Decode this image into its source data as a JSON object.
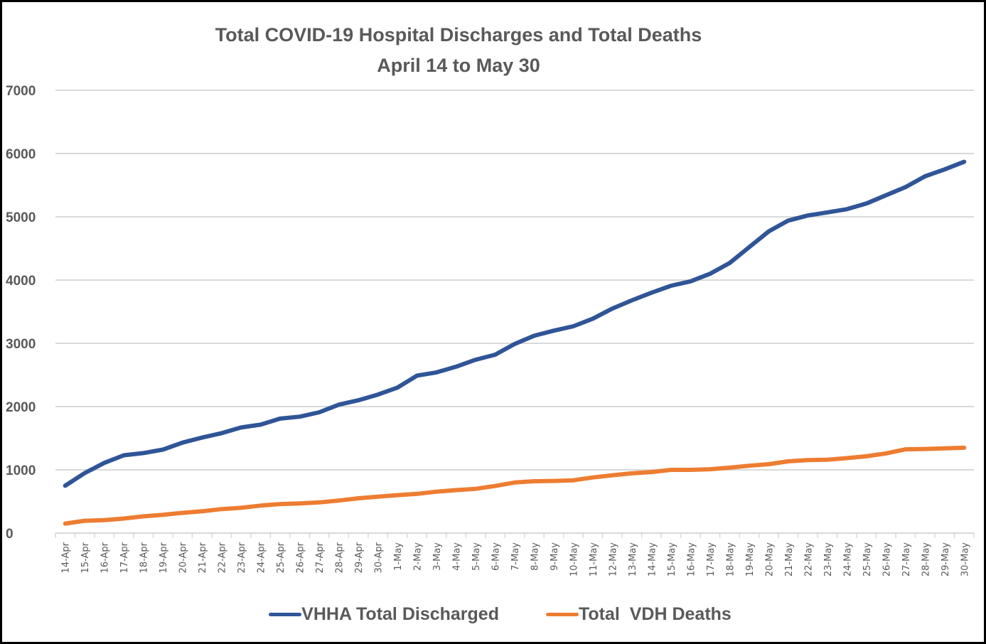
{
  "chart_data": {
    "type": "line",
    "title": "Total COVID-19 Hospital Discharges and Total Deaths",
    "subtitle": "April 14 to May 30",
    "xlabel": "",
    "ylabel": "",
    "ylim": [
      0,
      7000
    ],
    "yticks": [
      "0",
      "1000",
      "2000",
      "3000",
      "4000",
      "5000",
      "6000",
      "7000"
    ],
    "grid": true,
    "legend_position": "bottom",
    "categories": [
      "14-Apr",
      "15-Apr",
      "16-Apr",
      "17-Apr",
      "18-Apr",
      "19-Apr",
      "20-Apr",
      "21-Apr",
      "22-Apr",
      "23-Apr",
      "24-Apr",
      "25-Apr",
      "26-Apr",
      "27-Apr",
      "28-Apr",
      "29-Apr",
      "30-Apr",
      "1-May",
      "2-May",
      "3-May",
      "4-May",
      "5-May",
      "6-May",
      "7-May",
      "8-May",
      "9-May",
      "10-May",
      "11-May",
      "12-May",
      "13-May",
      "14-May",
      "15-May",
      "16-May",
      "17-May",
      "18-May",
      "19-May",
      "20-May",
      "21-May",
      "22-May",
      "23-May",
      "24-May",
      "25-May",
      "26-May",
      "27-May",
      "28-May",
      "29-May",
      "30-May"
    ],
    "series": [
      {
        "name": "VHHA Total Discharged",
        "color": "#2F5597",
        "values": [
          750,
          950,
          1110,
          1230,
          1265,
          1320,
          1430,
          1510,
          1580,
          1670,
          1715,
          1810,
          1840,
          1910,
          2030,
          2100,
          2190,
          2300,
          2490,
          2540,
          2630,
          2740,
          2820,
          2990,
          3120,
          3200,
          3270,
          3390,
          3550,
          3680,
          3800,
          3910,
          3980,
          4100,
          4270,
          4520,
          4770,
          4940,
          5020,
          5070,
          5120,
          5210,
          5340,
          5470,
          5640,
          5750,
          5870
        ]
      },
      {
        "name": "Total  VDH Deaths",
        "color": "#ED7D31",
        "values": [
          150,
          195,
          205,
          230,
          265,
          290,
          320,
          345,
          380,
          400,
          435,
          460,
          470,
          485,
          515,
          550,
          575,
          600,
          620,
          655,
          680,
          700,
          745,
          800,
          820,
          825,
          835,
          880,
          915,
          945,
          965,
          1000,
          1000,
          1010,
          1035,
          1065,
          1090,
          1135,
          1155,
          1160,
          1185,
          1215,
          1260,
          1325,
          1330,
          1340,
          1350
        ]
      }
    ]
  }
}
